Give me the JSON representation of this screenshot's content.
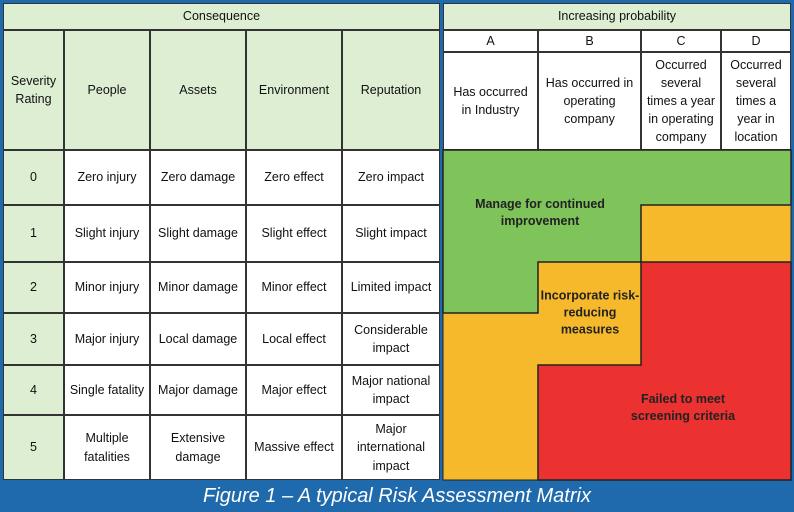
{
  "header": {
    "consequence": "Consequence",
    "probability": "Increasing probability"
  },
  "columns": [
    "Severity Rating",
    "People",
    "Assets",
    "Environment",
    "Reputation"
  ],
  "probability_columns": [
    {
      "letter": "A",
      "description": "Has occurred in Industry"
    },
    {
      "letter": "B",
      "description": "Has occurred in operating company"
    },
    {
      "letter": "C",
      "description": "Occurred several times a year in operating company"
    },
    {
      "letter": "D",
      "description": "Occurred several times a year in location"
    }
  ],
  "rows": [
    [
      0,
      "Zero injury",
      "Zero damage",
      "Zero effect",
      "Zero impact"
    ],
    [
      1,
      "Slight injury",
      "Slight damage",
      "Slight effect",
      "Slight impact"
    ],
    [
      2,
      "Minor injury",
      "Minor damage",
      "Minor effect",
      "Limited impact"
    ],
    [
      3,
      "Major injury",
      "Local damage",
      "Local effect",
      "Considerable impact"
    ],
    [
      4,
      "Single fatality",
      "Major damage",
      "Major effect",
      "Major national impact"
    ],
    [
      5,
      "Multiple fatalities",
      "Extensive damage",
      "Massive effect",
      "Major international impact"
    ]
  ],
  "zones": [
    {
      "label": "Manage for continued improvement"
    },
    {
      "label": "Incorporate risk-reducing measures"
    },
    {
      "label": "Failed to meet screening criteria"
    }
  ],
  "caption": "Figure 1 – A typical Risk Assessment Matrix"
}
